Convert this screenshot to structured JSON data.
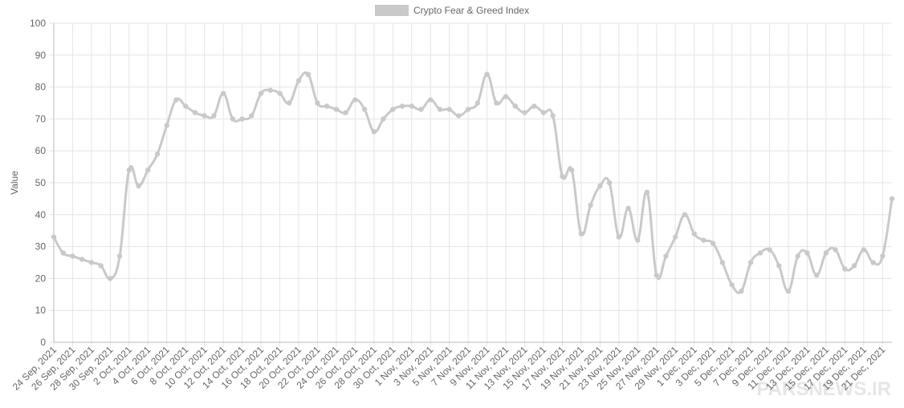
{
  "chart_data": {
    "type": "line",
    "legend_label": "Crypto Fear & Greed Index",
    "y_label": "Value",
    "watermark": "PARSNEWS.IR",
    "categories": [
      "24 Sep, 2021",
      null,
      "26 Sep, 2021",
      null,
      "28 Sep, 2021",
      null,
      "30 Sep, 2021",
      null,
      "2 Oct, 2021",
      null,
      "4 Oct, 2021",
      null,
      "6 Oct, 2021",
      null,
      "8 Oct, 2021",
      null,
      "10 Oct, 2021",
      null,
      "12 Oct, 2021",
      null,
      "14 Oct, 2021",
      null,
      "16 Oct, 2021",
      null,
      "18 Oct, 2021",
      null,
      "20 Oct, 2021",
      null,
      "22 Oct, 2021",
      null,
      "24 Oct, 2021",
      null,
      "26 Oct, 2021",
      null,
      "28 Oct, 2021",
      null,
      "30 Oct, 2021",
      null,
      "1 Nov, 2021",
      null,
      "3 Nov, 2021",
      null,
      "5 Nov, 2021",
      null,
      "7 Nov, 2021",
      null,
      "9 Nov, 2021",
      null,
      "11 Nov, 2021",
      null,
      "13 Nov, 2021",
      null,
      "15 Nov, 2021",
      null,
      "17 Nov, 2021",
      null,
      "19 Nov, 2021",
      null,
      "21 Nov, 2021",
      null,
      "23 Nov, 2021",
      null,
      "25 Nov, 2021",
      null,
      "27 Nov, 2021",
      null,
      "29 Nov, 2021",
      null,
      "1 Dec, 2021",
      null,
      "3 Dec, 2021",
      null,
      "5 Dec, 2021",
      null,
      "7 Dec, 2021",
      null,
      "9 Dec, 2021",
      null,
      "11 Dec, 2021",
      null,
      "13 Dec, 2021",
      null,
      "15 Dec, 2021",
      null,
      "17 Dec, 2021",
      null,
      "19 Dec, 2021",
      null,
      "21 Dec, 2021",
      null
    ],
    "values": [
      33,
      28,
      27,
      26,
      25,
      24,
      20,
      27,
      54,
      49,
      54,
      59,
      68,
      76,
      74,
      72,
      71,
      71,
      78,
      70,
      70,
      71,
      78,
      79,
      78,
      75,
      82,
      84,
      75,
      74,
      73,
      72,
      76,
      73,
      66,
      70,
      73,
      74,
      74,
      73,
      76,
      73,
      73,
      71,
      73,
      75,
      84,
      75,
      77,
      74,
      72,
      74,
      72,
      71,
      52,
      54,
      34,
      43,
      49,
      50,
      33,
      42,
      32,
      47,
      21,
      27,
      33,
      40,
      34,
      32,
      31,
      25,
      18,
      16,
      25,
      28,
      29,
      24,
      16,
      27,
      28,
      21,
      28,
      29,
      23,
      24,
      29,
      25,
      27,
      45
    ],
    "color": "#c9c9c9",
    "ylim": [
      0,
      100
    ],
    "yticks": [
      0,
      10,
      20,
      30,
      40,
      50,
      60,
      70,
      80,
      90,
      100
    ],
    "grid": true
  }
}
